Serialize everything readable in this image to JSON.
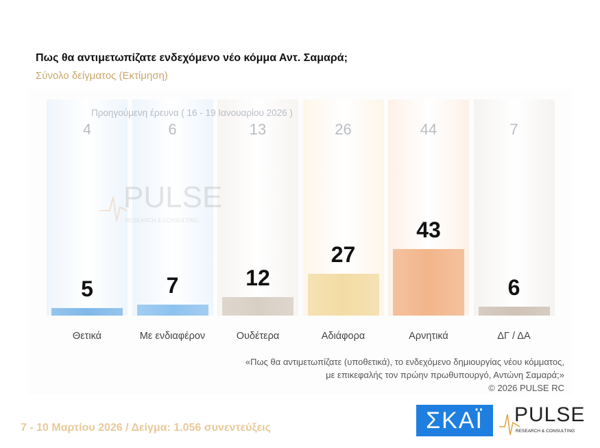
{
  "chart_data": {
    "type": "bar",
    "title": "Πως θα αντιμετωπίζατε ενδεχόμενο νέο κόμμα Αντ. Σαμαρά;",
    "subtitle": "Σύνολο δείγματος  (Εκτίμηση)",
    "categories": [
      "Θετικά",
      "Με ενδιαφέρον",
      "Ουδέτερα",
      "Αδιάφορα",
      "Αρνητικά",
      "ΔΓ / ΔΑ"
    ],
    "series": [
      {
        "name": "",
        "values": [
          5,
          7,
          12,
          27,
          43,
          6
        ]
      },
      {
        "name": "Προηγούμενη έρευνα ( 16 - 19 Ιανουαρίου 2026 )",
        "values": [
          4,
          6,
          13,
          26,
          44,
          7
        ]
      }
    ],
    "colors": [
      "#7fb8e8",
      "#8ec2ef",
      "#d8cfc4",
      "#f3dca4",
      "#f2b58a",
      "#cfc2b6"
    ],
    "column_tints": [
      "#eef5fc",
      "#eef5fc",
      "#f7f4f1",
      "#fdf6ea",
      "#fdf1e8",
      "#f5f3f1"
    ]
  },
  "note": [
    "«Πως θα αντιμετωπίζατε (υποθετικά), το ενδεχόμενο δημιουργίας νέου κόμματος,",
    "με επικεφαλής τον πρώην πρωθυπουργό, Αντώνη Σαμαρά;»",
    "©  2026  PULSE RC"
  ],
  "footer": "7 - 10  Μαρτίου 2026  /  Δείγμα:  1.056 συνεντεύξεις",
  "logos": {
    "skai": "ΣΚΑΪ",
    "pulse": "PULSE",
    "pulse_sub": "RESEARCH & CONSULTING"
  }
}
